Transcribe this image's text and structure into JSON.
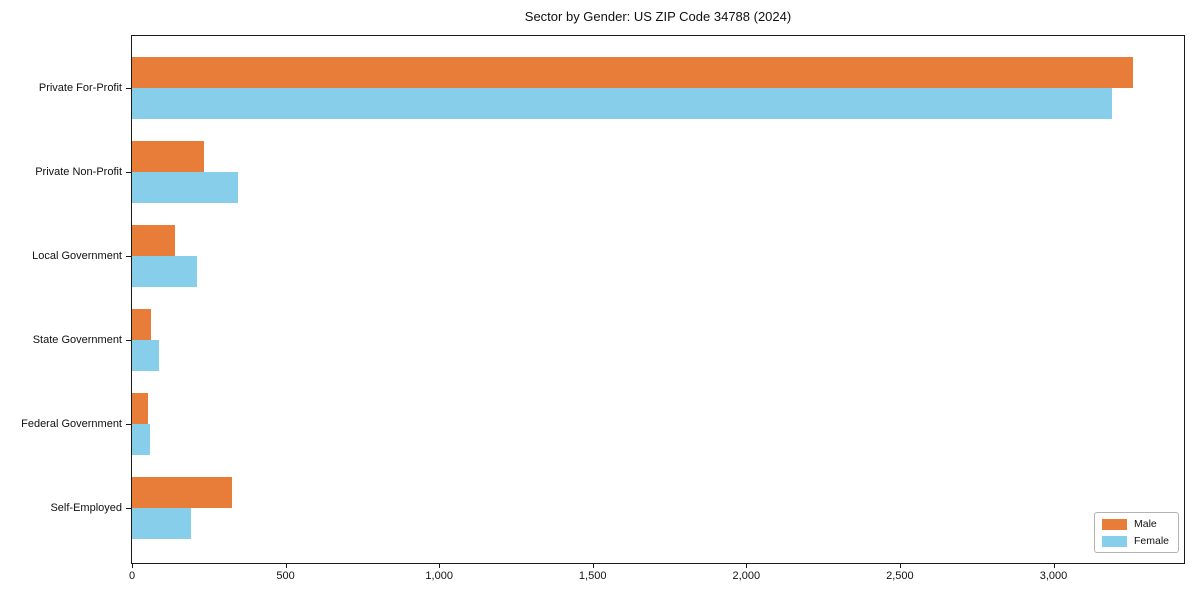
{
  "title": "Sector by Gender: US ZIP Code 34788 (2024)",
  "chart_data": {
    "type": "bar",
    "orientation": "horizontal",
    "title": "Sector by Gender: US ZIP Code 34788 (2024)",
    "categories": [
      "Private For-Profit",
      "Private Non-Profit",
      "Local Government",
      "State Government",
      "Federal Government",
      "Self-Employed"
    ],
    "series": [
      {
        "name": "Male",
        "color": "#E87D3A",
        "values": [
          3260,
          235,
          140,
          63,
          52,
          325
        ]
      },
      {
        "name": "Female",
        "color": "#87CEEB",
        "values": [
          3190,
          345,
          210,
          89,
          57,
          193
        ]
      }
    ],
    "xlabel": "",
    "ylabel": "",
    "xlim": [
      0,
      3425
    ],
    "xticks": [
      0,
      500,
      1000,
      1500,
      2000,
      2500,
      3000
    ],
    "xtick_labels": [
      "0",
      "500",
      "1,000",
      "1,500",
      "2,000",
      "2,500",
      "3,000"
    ],
    "grid": false,
    "legend_position": "lower right",
    "colors": {
      "axis": "#1a1a1a",
      "text": "#111111",
      "background": "#ffffff"
    }
  }
}
